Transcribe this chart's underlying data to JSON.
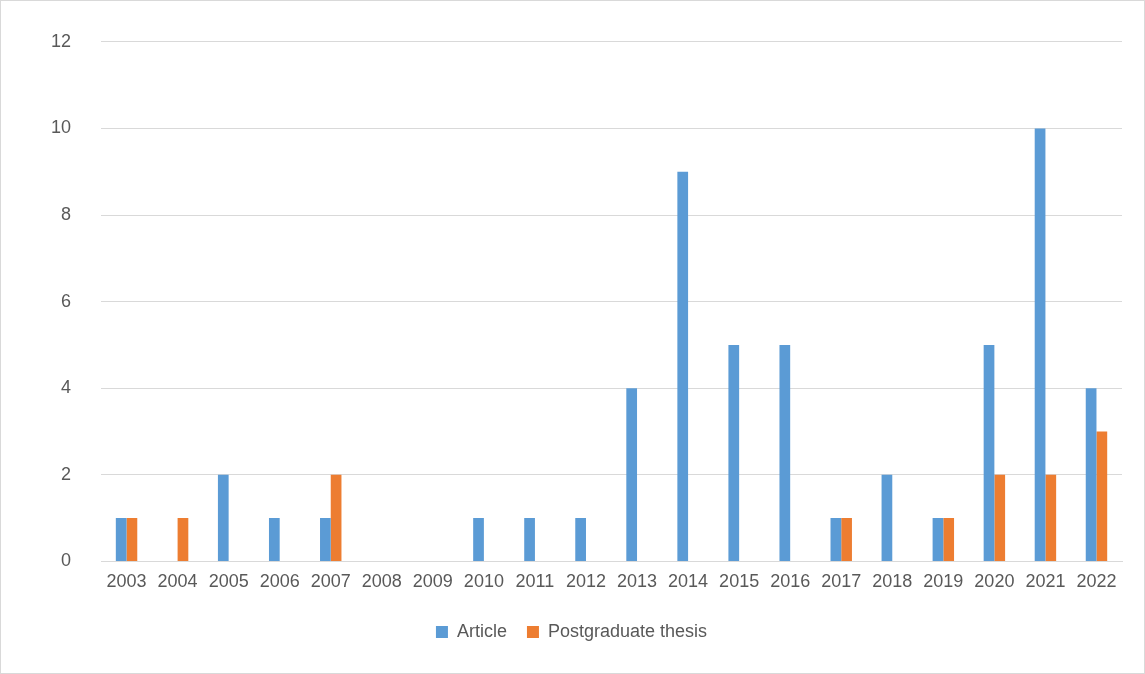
{
  "chart_data": {
    "type": "bar",
    "categories": [
      "2003",
      "2004",
      "2005",
      "2006",
      "2007",
      "2008",
      "2009",
      "2010",
      "2011",
      "2012",
      "2013",
      "2014",
      "2015",
      "2016",
      "2017",
      "2018",
      "2019",
      "2020",
      "2021",
      "2022"
    ],
    "series": [
      {
        "name": "Article",
        "color": "#5b9bd5",
        "values": [
          1,
          0,
          2,
          1,
          1,
          0,
          0,
          1,
          1,
          1,
          4,
          9,
          5,
          5,
          1,
          2,
          1,
          5,
          10,
          4
        ]
      },
      {
        "name": "Postgraduate thesis",
        "color": "#ed7d31",
        "values": [
          1,
          1,
          0,
          0,
          2,
          0,
          0,
          0,
          0,
          0,
          0,
          0,
          0,
          0,
          1,
          0,
          1,
          2,
          2,
          3
        ]
      }
    ],
    "ylim": [
      0,
      12
    ],
    "yticks": [
      0,
      2,
      4,
      6,
      8,
      10,
      12
    ],
    "grid": "y",
    "legend": "bottom"
  }
}
